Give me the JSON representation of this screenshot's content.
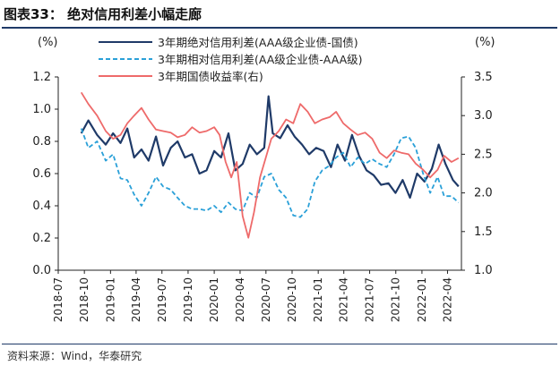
{
  "figure": {
    "title": "图表33： 绝对信用利差小幅走廊",
    "source": "资料来源：Wind，华泰研究"
  },
  "chart_data": {
    "type": "line",
    "left_unit": "(%)",
    "right_unit": "(%)",
    "ylim_left": [
      0,
      1.2
    ],
    "ylim_right": [
      1.0,
      3.5
    ],
    "yticks_left": [
      "0.0",
      "0.2",
      "0.4",
      "0.6",
      "0.8",
      "1.0",
      "1.2"
    ],
    "yticks_right": [
      "1.0",
      "1.5",
      "2.0",
      "2.5",
      "3.0",
      "3.5"
    ],
    "xticks": [
      "2018-07",
      "2018-10",
      "2019-01",
      "2019-04",
      "2019-07",
      "2019-10",
      "2020-01",
      "2020-04",
      "2020-07",
      "2020-10",
      "2021-01",
      "2021-04",
      "2021-07",
      "2021-10",
      "2022-01",
      "2022-04"
    ],
    "grid": false,
    "legend_position": "top-center",
    "series": [
      {
        "name": "3年期绝对信用利差(AAA级企业债-国债)",
        "axis": "left",
        "color": "#1f3a68",
        "style": "solid",
        "x": [
          "2018-09-20",
          "2018-10-15",
          "2018-11-15",
          "2018-12-15",
          "2019-01-10",
          "2019-02-05",
          "2019-03-01",
          "2019-03-25",
          "2019-04-20",
          "2019-05-15",
          "2019-06-10",
          "2019-07-05",
          "2019-08-01",
          "2019-08-25",
          "2019-09-20",
          "2019-10-15",
          "2019-11-10",
          "2019-12-05",
          "2020-01-01",
          "2020-01-25",
          "2020-02-20",
          "2020-03-15",
          "2020-04-10",
          "2020-05-05",
          "2020-05-30",
          "2020-06-25",
          "2020-07-10",
          "2020-07-25",
          "2020-08-20",
          "2020-09-15",
          "2020-10-10",
          "2020-11-05",
          "2020-11-30",
          "2020-12-25",
          "2021-01-20",
          "2021-02-15",
          "2021-03-10",
          "2021-04-05",
          "2021-04-30",
          "2021-05-25",
          "2021-06-20",
          "2021-07-15",
          "2021-08-10",
          "2021-09-05",
          "2021-09-30",
          "2021-10-25",
          "2021-11-20",
          "2021-12-15",
          "2022-01-10",
          "2022-02-05",
          "2022-03-01",
          "2022-03-25",
          "2022-04-20",
          "2022-05-10"
        ],
        "values": [
          0.85,
          0.93,
          0.84,
          0.78,
          0.85,
          0.79,
          0.88,
          0.7,
          0.75,
          0.68,
          0.83,
          0.65,
          0.76,
          0.8,
          0.7,
          0.72,
          0.6,
          0.62,
          0.74,
          0.7,
          0.85,
          0.62,
          0.66,
          0.78,
          0.72,
          0.76,
          1.08,
          0.85,
          0.82,
          0.9,
          0.83,
          0.78,
          0.72,
          0.76,
          0.74,
          0.64,
          0.78,
          0.68,
          0.84,
          0.71,
          0.62,
          0.59,
          0.53,
          0.54,
          0.48,
          0.56,
          0.45,
          0.6,
          0.55,
          0.63,
          0.78,
          0.66,
          0.56,
          0.52
        ]
      },
      {
        "name": "3年期相对信用利差(AA级企业债-AAA级)",
        "axis": "left",
        "color": "#2aa0d8",
        "style": "dashed",
        "x": [
          "2018-09-20",
          "2018-10-15",
          "2018-11-15",
          "2018-12-15",
          "2019-01-10",
          "2019-02-05",
          "2019-03-01",
          "2019-03-25",
          "2019-04-20",
          "2019-05-15",
          "2019-06-10",
          "2019-07-05",
          "2019-08-01",
          "2019-08-25",
          "2019-09-20",
          "2019-10-15",
          "2019-11-10",
          "2019-12-05",
          "2020-01-01",
          "2020-01-25",
          "2020-02-20",
          "2020-03-15",
          "2020-04-10",
          "2020-05-05",
          "2020-05-30",
          "2020-06-25",
          "2020-07-20",
          "2020-08-15",
          "2020-09-10",
          "2020-10-05",
          "2020-10-30",
          "2020-11-25",
          "2020-12-20",
          "2021-01-15",
          "2021-02-10",
          "2021-03-05",
          "2021-03-30",
          "2021-04-25",
          "2021-05-20",
          "2021-06-15",
          "2021-07-10",
          "2021-08-05",
          "2021-08-30",
          "2021-09-25",
          "2021-10-20",
          "2021-11-15",
          "2021-12-10",
          "2022-01-05",
          "2022-01-30",
          "2022-02-25",
          "2022-03-20",
          "2022-04-15",
          "2022-05-10"
        ],
        "values": [
          0.88,
          0.76,
          0.8,
          0.68,
          0.72,
          0.57,
          0.56,
          0.47,
          0.4,
          0.48,
          0.58,
          0.52,
          0.5,
          0.45,
          0.4,
          0.38,
          0.38,
          0.37,
          0.4,
          0.36,
          0.42,
          0.38,
          0.37,
          0.48,
          0.45,
          0.58,
          0.6,
          0.5,
          0.45,
          0.34,
          0.33,
          0.38,
          0.55,
          0.62,
          0.65,
          0.7,
          0.73,
          0.64,
          0.7,
          0.66,
          0.69,
          0.66,
          0.64,
          0.72,
          0.82,
          0.83,
          0.76,
          0.6,
          0.48,
          0.58,
          0.46,
          0.46,
          0.42
        ]
      },
      {
        "name": "3年期国债收益率(右)",
        "axis": "right",
        "color": "#ee6a6a",
        "style": "solid",
        "x": [
          "2018-09-20",
          "2018-10-15",
          "2018-11-15",
          "2018-12-15",
          "2019-01-10",
          "2019-02-05",
          "2019-03-01",
          "2019-03-25",
          "2019-04-20",
          "2019-05-15",
          "2019-06-10",
          "2019-07-05",
          "2019-08-01",
          "2019-08-25",
          "2019-09-20",
          "2019-10-15",
          "2019-11-10",
          "2019-12-05",
          "2020-01-01",
          "2020-01-20",
          "2020-02-10",
          "2020-03-01",
          "2020-03-20",
          "2020-04-10",
          "2020-04-30",
          "2020-05-20",
          "2020-06-10",
          "2020-06-30",
          "2020-07-20",
          "2020-08-15",
          "2020-09-10",
          "2020-10-05",
          "2020-10-30",
          "2020-11-25",
          "2020-12-20",
          "2021-01-15",
          "2021-02-10",
          "2021-03-05",
          "2021-03-30",
          "2021-04-25",
          "2021-05-20",
          "2021-06-15",
          "2021-07-10",
          "2021-08-05",
          "2021-08-30",
          "2021-09-25",
          "2021-10-20",
          "2021-11-15",
          "2021-12-10",
          "2022-01-05",
          "2022-01-30",
          "2022-02-25",
          "2022-03-20",
          "2022-04-15",
          "2022-05-10"
        ],
        "values": [
          3.3,
          3.15,
          3.0,
          2.8,
          2.7,
          2.75,
          2.9,
          3.0,
          3.1,
          2.95,
          2.82,
          2.8,
          2.78,
          2.72,
          2.75,
          2.85,
          2.78,
          2.8,
          2.85,
          2.75,
          2.4,
          2.2,
          2.4,
          1.7,
          1.42,
          1.75,
          2.2,
          2.45,
          2.7,
          2.8,
          2.95,
          2.9,
          3.15,
          3.05,
          2.9,
          2.95,
          2.98,
          3.05,
          2.9,
          2.82,
          2.75,
          2.78,
          2.7,
          2.52,
          2.45,
          2.55,
          2.52,
          2.5,
          2.38,
          2.3,
          2.2,
          2.3,
          2.48,
          2.4,
          2.45
        ]
      }
    ]
  }
}
